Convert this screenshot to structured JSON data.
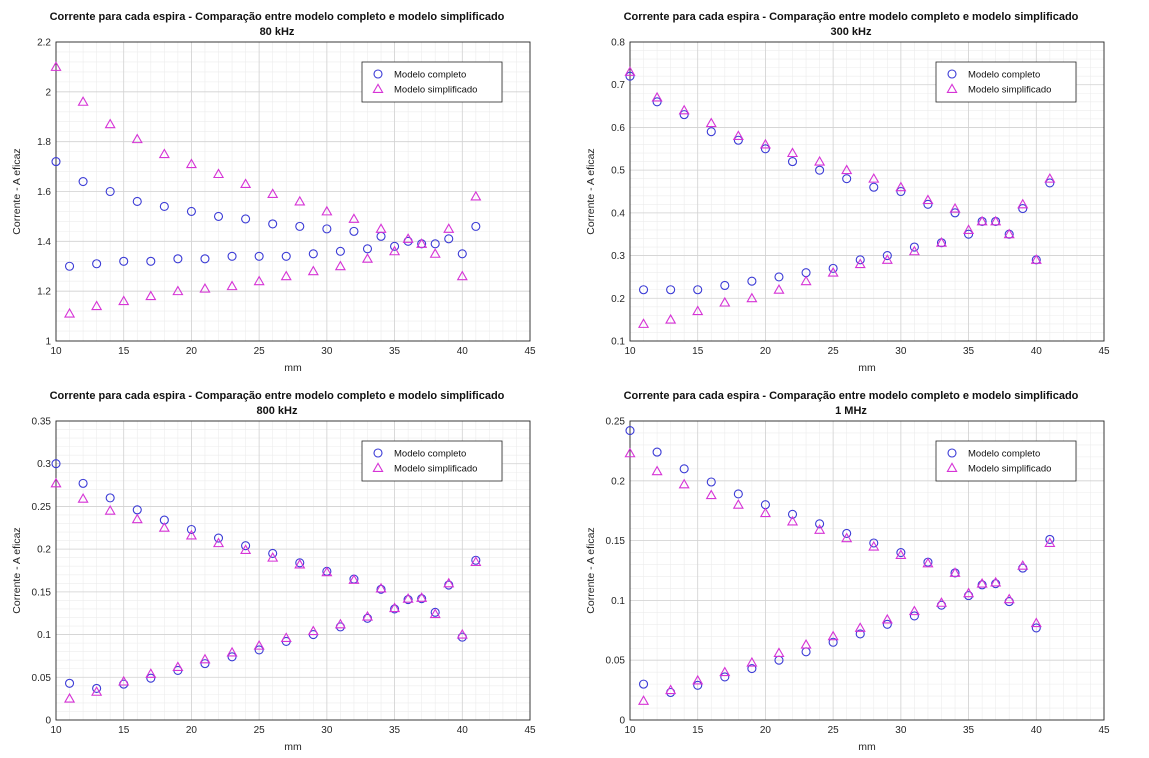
{
  "chart_data": [
    {
      "type": "scatter",
      "title": "Corrente para cada espira - Comparação entre modelo completo e modelo simplificado",
      "subtitle": "80 kHz",
      "xlabel": "mm",
      "ylabel": "Corrente - A eficaz",
      "xlim": [
        10,
        45
      ],
      "ylim": [
        1,
        2.2
      ],
      "xticks": [
        "10",
        "15",
        "20",
        "25",
        "30",
        "35",
        "40",
        "45"
      ],
      "yticks": [
        "1",
        "1.2",
        "1.4",
        "1.6",
        "1.8",
        "2",
        "2.2"
      ],
      "grid": true,
      "legend_position": "top-right",
      "series": [
        {
          "name": "Modelo completo",
          "marker": "circle",
          "color": "#3b3bd6",
          "x": [
            10,
            11,
            12,
            13,
            14,
            15,
            16,
            17,
            18,
            19,
            20,
            21,
            22,
            23,
            24,
            25,
            26,
            27,
            28,
            29,
            30,
            31,
            32,
            33,
            34,
            35,
            36,
            37,
            38,
            39,
            40,
            41
          ],
          "y": [
            1.72,
            1.3,
            1.64,
            1.31,
            1.6,
            1.32,
            1.56,
            1.32,
            1.54,
            1.33,
            1.52,
            1.33,
            1.5,
            1.34,
            1.49,
            1.34,
            1.47,
            1.34,
            1.46,
            1.35,
            1.45,
            1.36,
            1.44,
            1.37,
            1.42,
            1.38,
            1.4,
            1.39,
            1.39,
            1.41,
            1.35,
            1.46
          ]
        },
        {
          "name": "Modelo simplificado",
          "marker": "triangle",
          "color": "#d634d6",
          "x": [
            10,
            11,
            12,
            13,
            14,
            15,
            16,
            17,
            18,
            19,
            20,
            21,
            22,
            23,
            24,
            25,
            26,
            27,
            28,
            29,
            30,
            31,
            32,
            33,
            34,
            35,
            36,
            37,
            38,
            39,
            40,
            41
          ],
          "y": [
            2.1,
            1.11,
            1.96,
            1.14,
            1.87,
            1.16,
            1.81,
            1.18,
            1.75,
            1.2,
            1.71,
            1.21,
            1.67,
            1.22,
            1.63,
            1.24,
            1.59,
            1.26,
            1.56,
            1.28,
            1.52,
            1.3,
            1.49,
            1.33,
            1.45,
            1.36,
            1.41,
            1.39,
            1.35,
            1.45,
            1.26,
            1.58
          ]
        }
      ]
    },
    {
      "type": "scatter",
      "title": "Corrente para cada espira - Comparação entre modelo completo e modelo simplificado",
      "subtitle": "300 kHz",
      "xlabel": "mm",
      "ylabel": "Corrente - A eficaz",
      "xlim": [
        10,
        45
      ],
      "ylim": [
        0.1,
        0.8
      ],
      "xticks": [
        "10",
        "15",
        "20",
        "25",
        "30",
        "35",
        "40",
        "45"
      ],
      "yticks": [
        "0.1",
        "0.2",
        "0.3",
        "0.4",
        "0.5",
        "0.6",
        "0.7",
        "0.8"
      ],
      "grid": true,
      "legend_position": "top-right",
      "series": [
        {
          "name": "Modelo completo",
          "marker": "circle",
          "color": "#3b3bd6",
          "x": [
            10,
            11,
            12,
            13,
            14,
            15,
            16,
            17,
            18,
            19,
            20,
            21,
            22,
            23,
            24,
            25,
            26,
            27,
            28,
            29,
            30,
            31,
            32,
            33,
            34,
            35,
            36,
            37,
            38,
            39,
            40,
            41
          ],
          "y": [
            0.72,
            0.22,
            0.66,
            0.22,
            0.63,
            0.22,
            0.59,
            0.23,
            0.57,
            0.24,
            0.55,
            0.25,
            0.52,
            0.26,
            0.5,
            0.27,
            0.48,
            0.29,
            0.46,
            0.3,
            0.45,
            0.32,
            0.42,
            0.33,
            0.4,
            0.35,
            0.38,
            0.38,
            0.35,
            0.41,
            0.29,
            0.47
          ]
        },
        {
          "name": "Modelo simplificado",
          "marker": "triangle",
          "color": "#d634d6",
          "x": [
            10,
            11,
            12,
            13,
            14,
            15,
            16,
            17,
            18,
            19,
            20,
            21,
            22,
            23,
            24,
            25,
            26,
            27,
            28,
            29,
            30,
            31,
            32,
            33,
            34,
            35,
            36,
            37,
            38,
            39,
            40,
            41
          ],
          "y": [
            0.73,
            0.14,
            0.67,
            0.15,
            0.64,
            0.17,
            0.61,
            0.19,
            0.58,
            0.2,
            0.56,
            0.22,
            0.54,
            0.24,
            0.52,
            0.26,
            0.5,
            0.28,
            0.48,
            0.29,
            0.46,
            0.31,
            0.43,
            0.33,
            0.41,
            0.36,
            0.38,
            0.38,
            0.35,
            0.42,
            0.29,
            0.48
          ]
        }
      ]
    },
    {
      "type": "scatter",
      "title": "Corrente para cada espira - Comparação entre modelo completo e modelo simplificado",
      "subtitle": "800 kHz",
      "xlabel": "mm",
      "ylabel": "Corrente - A eficaz",
      "xlim": [
        10,
        45
      ],
      "ylim": [
        0,
        0.35
      ],
      "xticks": [
        "10",
        "15",
        "20",
        "25",
        "30",
        "35",
        "40",
        "45"
      ],
      "yticks": [
        "0",
        "0.05",
        "0.1",
        "0.15",
        "0.2",
        "0.25",
        "0.3",
        "0.35"
      ],
      "grid": true,
      "legend_position": "top-right",
      "series": [
        {
          "name": "Modelo completo",
          "marker": "circle",
          "color": "#3b3bd6",
          "x": [
            10,
            11,
            12,
            13,
            14,
            15,
            16,
            17,
            18,
            19,
            20,
            21,
            22,
            23,
            24,
            25,
            26,
            27,
            28,
            29,
            30,
            31,
            32,
            33,
            34,
            35,
            36,
            37,
            38,
            39,
            40,
            41
          ],
          "y": [
            0.3,
            0.043,
            0.277,
            0.037,
            0.26,
            0.042,
            0.246,
            0.049,
            0.234,
            0.058,
            0.223,
            0.066,
            0.213,
            0.074,
            0.204,
            0.082,
            0.195,
            0.092,
            0.184,
            0.1,
            0.174,
            0.109,
            0.165,
            0.119,
            0.153,
            0.13,
            0.141,
            0.142,
            0.126,
            0.158,
            0.097,
            0.187
          ]
        },
        {
          "name": "Modelo simplificado",
          "marker": "triangle",
          "color": "#d634d6",
          "x": [
            10,
            11,
            12,
            13,
            14,
            15,
            16,
            17,
            18,
            19,
            20,
            21,
            22,
            23,
            24,
            25,
            26,
            27,
            28,
            29,
            30,
            31,
            32,
            33,
            34,
            35,
            36,
            37,
            38,
            39,
            40,
            41
          ],
          "y": [
            0.277,
            0.025,
            0.259,
            0.033,
            0.245,
            0.045,
            0.235,
            0.054,
            0.225,
            0.062,
            0.216,
            0.071,
            0.207,
            0.079,
            0.199,
            0.087,
            0.19,
            0.096,
            0.182,
            0.104,
            0.173,
            0.112,
            0.164,
            0.121,
            0.154,
            0.131,
            0.142,
            0.143,
            0.124,
            0.16,
            0.1,
            0.185
          ]
        }
      ]
    },
    {
      "type": "scatter",
      "title": "Corrente para cada espira - Comparação entre modelo completo e modelo simplificado",
      "subtitle": "1 MHz",
      "xlabel": "mm",
      "ylabel": "Corrente - A eficaz",
      "xlim": [
        10,
        45
      ],
      "ylim": [
        0,
        0.25
      ],
      "xticks": [
        "10",
        "15",
        "20",
        "25",
        "30",
        "35",
        "40",
        "45"
      ],
      "yticks": [
        "0",
        "0.05",
        "0.1",
        "0.15",
        "0.2",
        "0.25"
      ],
      "grid": true,
      "legend_position": "top-right",
      "series": [
        {
          "name": "Modelo completo",
          "marker": "circle",
          "color": "#3b3bd6",
          "x": [
            10,
            11,
            12,
            13,
            14,
            15,
            16,
            17,
            18,
            19,
            20,
            21,
            22,
            23,
            24,
            25,
            26,
            27,
            28,
            29,
            30,
            31,
            32,
            33,
            34,
            35,
            36,
            37,
            38,
            39,
            40,
            41
          ],
          "y": [
            0.242,
            0.03,
            0.224,
            0.023,
            0.21,
            0.029,
            0.199,
            0.036,
            0.189,
            0.043,
            0.18,
            0.05,
            0.172,
            0.057,
            0.164,
            0.065,
            0.156,
            0.072,
            0.148,
            0.08,
            0.14,
            0.087,
            0.132,
            0.096,
            0.123,
            0.104,
            0.113,
            0.114,
            0.099,
            0.127,
            0.077,
            0.151
          ]
        },
        {
          "name": "Modelo simplificado",
          "marker": "triangle",
          "color": "#d634d6",
          "x": [
            10,
            11,
            12,
            13,
            14,
            15,
            16,
            17,
            18,
            19,
            20,
            21,
            22,
            23,
            24,
            25,
            26,
            27,
            28,
            29,
            30,
            31,
            32,
            33,
            34,
            35,
            36,
            37,
            38,
            39,
            40,
            41
          ],
          "y": [
            0.223,
            0.016,
            0.208,
            0.025,
            0.197,
            0.033,
            0.188,
            0.04,
            0.18,
            0.048,
            0.173,
            0.056,
            0.166,
            0.063,
            0.159,
            0.07,
            0.152,
            0.077,
            0.145,
            0.084,
            0.138,
            0.091,
            0.131,
            0.098,
            0.123,
            0.106,
            0.114,
            0.115,
            0.101,
            0.129,
            0.081,
            0.148
          ]
        }
      ]
    }
  ]
}
